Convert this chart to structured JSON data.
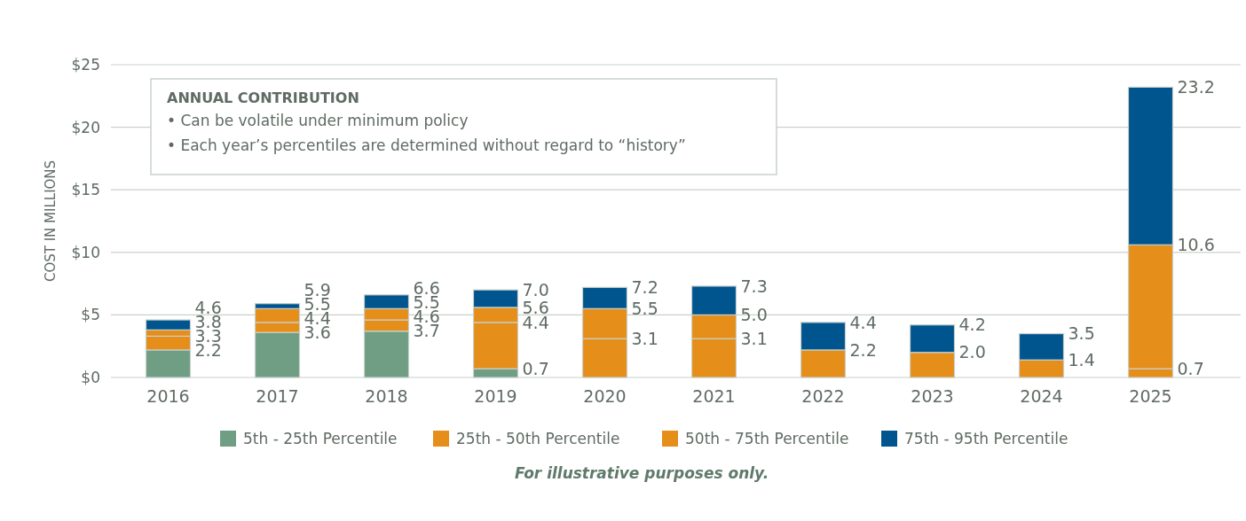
{
  "chart_data": {
    "type": "bar",
    "stacked": true,
    "ylabel": "COST IN MILLIONS",
    "categories": [
      "2016",
      "2017",
      "2018",
      "2019",
      "2020",
      "2021",
      "2022",
      "2023",
      "2024",
      "2025"
    ],
    "series": [
      {
        "name": "5th - 25th Percentile",
        "color": "#6f9e85",
        "values": [
          2.2,
          3.6,
          3.7,
          0.7,
          0,
          0,
          0,
          0,
          0,
          0
        ]
      },
      {
        "name": "25th - 50th Percentile",
        "color": "#e58e1a",
        "values": [
          1.1,
          0.8,
          0.9,
          3.7,
          3.1,
          3.1,
          0,
          0,
          0,
          0.7
        ]
      },
      {
        "name": "50th - 75th Percentile",
        "color": "#e58e1a",
        "values": [
          0.5,
          1.1,
          0.9,
          1.2,
          2.4,
          1.9,
          2.2,
          2.0,
          1.4,
          9.9
        ]
      },
      {
        "name": "75th - 95th Percentile",
        "color": "#00558f",
        "values": [
          0.8,
          0.4,
          1.1,
          1.4,
          1.7,
          2.3,
          2.2,
          2.2,
          2.1,
          12.6
        ]
      }
    ],
    "ylim": [
      0,
      25
    ],
    "yticks": [
      {
        "value": 0,
        "label": "$0"
      },
      {
        "value": 5,
        "label": "$5"
      },
      {
        "value": 10,
        "label": "$10"
      },
      {
        "value": 15,
        "label": "$15"
      },
      {
        "value": 20,
        "label": "$20"
      },
      {
        "value": 25,
        "label": "$25"
      }
    ],
    "grid": "y",
    "legend": "bottom",
    "annotations": [
      "ANNUAL CONTRIBUTION",
      "• Can be volatile under minimum policy",
      "• Each year’s percentiles are determined without regard to “history”",
      "For illustrative purposes only.",
      {
        "text": "2.2",
        "x": "2016",
        "y": 2.2
      },
      {
        "text": "3.3",
        "x": "2016",
        "y": 3.3
      },
      {
        "text": "3.8",
        "x": "2016",
        "y": 3.8
      },
      {
        "text": "4.6",
        "x": "2016",
        "y": 4.6
      },
      {
        "text": "3.6",
        "x": "2017",
        "y": 3.6
      },
      {
        "text": "4.4",
        "x": "2017",
        "y": 4.4
      },
      {
        "text": "5.5",
        "x": "2017",
        "y": 5.5
      },
      {
        "text": "5.9",
        "x": "2017",
        "y": 5.9
      },
      {
        "text": "3.7",
        "x": "2018",
        "y": 3.7
      },
      {
        "text": "4.6",
        "x": "2018",
        "y": 4.6
      },
      {
        "text": "5.5",
        "x": "2018",
        "y": 5.5
      },
      {
        "text": "6.6",
        "x": "2018",
        "y": 6.6
      },
      {
        "text": "0.7",
        "x": "2019",
        "y": 0.7
      },
      {
        "text": "4.4",
        "x": "2019",
        "y": 4.4
      },
      {
        "text": "5.6",
        "x": "2019",
        "y": 5.6
      },
      {
        "text": "7.0",
        "x": "2019",
        "y": 7.0
      },
      {
        "text": "3.1",
        "x": "2020",
        "y": 3.1
      },
      {
        "text": "5.5",
        "x": "2020",
        "y": 5.5
      },
      {
        "text": "7.2",
        "x": "2020",
        "y": 7.2
      },
      {
        "text": "3.1",
        "x": "2021",
        "y": 3.1
      },
      {
        "text": "5.0",
        "x": "2021",
        "y": 5.0
      },
      {
        "text": "7.3",
        "x": "2021",
        "y": 7.3
      },
      {
        "text": "2.2",
        "x": "2022",
        "y": 2.2
      },
      {
        "text": "4.4",
        "x": "2022",
        "y": 4.4
      },
      {
        "text": "2.0",
        "x": "2023",
        "y": 2.0
      },
      {
        "text": "4.2",
        "x": "2023",
        "y": 4.2
      },
      {
        "text": "1.4",
        "x": "2024",
        "y": 1.4
      },
      {
        "text": "3.5",
        "x": "2024",
        "y": 3.5
      },
      {
        "text": "0.7",
        "x": "2025",
        "y": 0.7
      },
      {
        "text": "10.6",
        "x": "2025",
        "y": 10.6
      },
      {
        "text": "23.2",
        "x": "2025",
        "y": 23.2
      }
    ]
  }
}
